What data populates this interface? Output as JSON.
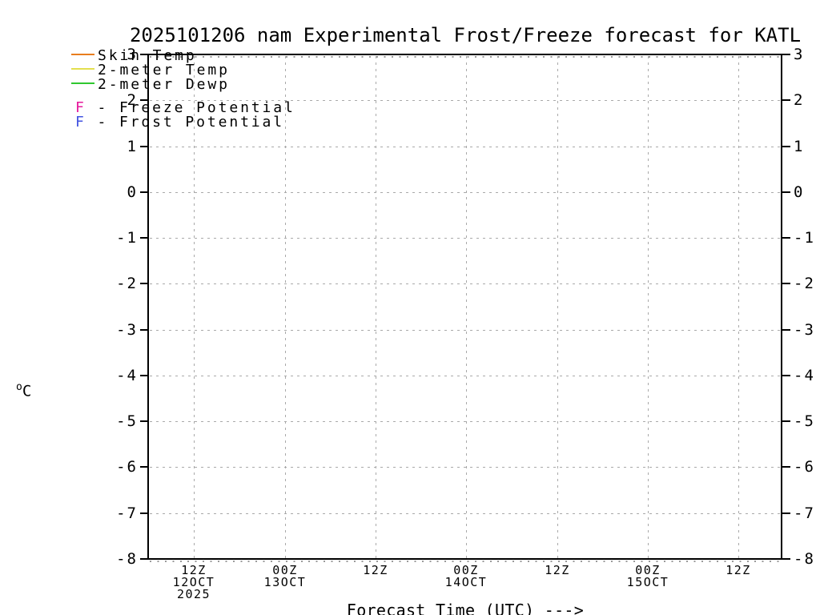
{
  "title": "2025101206 nam Experimental Frost/Freeze forecast for KATL",
  "legend": {
    "series": [
      {
        "label": "Skin Temp",
        "color": "#e87d1e"
      },
      {
        "label": "2-meter Temp",
        "color": "#e3df4f"
      },
      {
        "label": "2-meter Dewp",
        "color": "#2fc82f"
      }
    ],
    "flags": [
      {
        "text": "F - Freeze Potential",
        "color": "#e6199c"
      },
      {
        "text": "F - Frost Potential",
        "color": "#4253e0"
      }
    ]
  },
  "axes": {
    "y": {
      "unit_sup": "o",
      "unit": "C",
      "ticks": [
        "3",
        "2",
        "1",
        "0",
        "-1",
        "-2",
        "-3",
        "-4",
        "-5",
        "-6",
        "-7",
        "-8"
      ]
    },
    "x": {
      "title": "Forecast Time (UTC) --->",
      "ticks": [
        [
          "12Z",
          "12OCT",
          "2025"
        ],
        [
          "00Z",
          "13OCT"
        ],
        [
          "12Z"
        ],
        [
          "00Z",
          "14OCT"
        ],
        [
          "12Z"
        ],
        [
          "00Z",
          "15OCT"
        ],
        [
          "12Z"
        ]
      ]
    }
  },
  "chart_data": {
    "type": "line",
    "title": "2025101206 nam Experimental Frost/Freeze forecast for KATL",
    "xlabel": "Forecast Time (UTC) --->",
    "ylabel": "°C",
    "ylim": [
      -8,
      3
    ],
    "x_tick_labels": [
      "12Z 12OCT 2025",
      "00Z 13OCT",
      "12Z",
      "00Z 14OCT",
      "12Z",
      "00Z 15OCT",
      "12Z"
    ],
    "grid": true,
    "legend_position": "top-left",
    "series": [
      {
        "name": "Skin Temp",
        "color": "#e87d1e",
        "values": []
      },
      {
        "name": "2-meter Temp",
        "color": "#e3df4f",
        "values": []
      },
      {
        "name": "2-meter Dewp",
        "color": "#2fc82f",
        "values": []
      }
    ],
    "annotations": [
      {
        "symbol": "F",
        "meaning": "Freeze Potential",
        "color": "#e6199c",
        "occurrences": []
      },
      {
        "symbol": "F",
        "meaning": "Frost Potential",
        "color": "#4253e0",
        "occurrences": []
      }
    ],
    "note": "Plot area is empty: no forecast trace or F markers fall within the displayed -8 to 3 °C range"
  }
}
